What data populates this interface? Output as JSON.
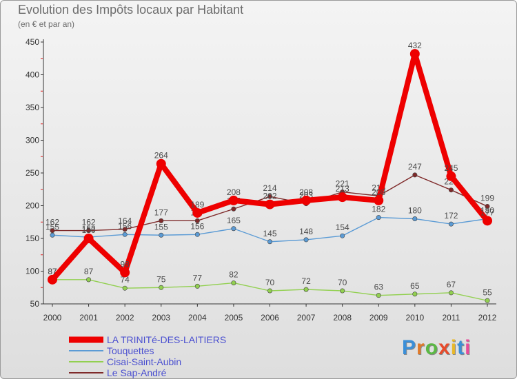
{
  "header": {
    "title": "Evolution des Impôts locaux par Habitant",
    "subtitle": "(en € et par an)"
  },
  "logo": {
    "text": "Proxiti",
    "colors": [
      "#3b8fd8",
      "#e07a2a",
      "#5bb844",
      "#e84a2a",
      "#e8b82a",
      "#3b8fd8",
      "#e84a9a"
    ]
  },
  "chart_data": {
    "type": "line",
    "x": [
      2000,
      2001,
      2002,
      2003,
      2004,
      2005,
      2006,
      2007,
      2008,
      2009,
      2010,
      2011,
      2012
    ],
    "ylim": [
      50,
      450
    ],
    "yticks": [
      50,
      100,
      150,
      200,
      250,
      300,
      350,
      400,
      450
    ],
    "grid": false,
    "legend_position": "bottom-left",
    "series": [
      {
        "name": "LA TRINITé-DES-LAITIERS",
        "color": "#ee0000",
        "values": [
          87,
          150,
          98,
          264,
          189,
          208,
          202,
          208,
          213,
          208,
          432,
          245,
          177
        ],
        "labels": [
          "87",
          "150",
          "98",
          "264",
          "189",
          "208",
          "202",
          "208",
          "213",
          "208",
          "432",
          "245",
          "177"
        ]
      },
      {
        "name": "Touquettes",
        "color": "#5b9bd5",
        "values": [
          155,
          152,
          156,
          155,
          156,
          165,
          145,
          148,
          154,
          182,
          180,
          172,
          180
        ],
        "labels": [
          "155",
          "152",
          "156",
          "155",
          "156",
          "165",
          "145",
          "148",
          "154",
          "182",
          "180",
          "172",
          "180"
        ]
      },
      {
        "name": "Cisai-Saint-Aubin",
        "color": "#92d050",
        "values": [
          87,
          87,
          74,
          75,
          77,
          82,
          70,
          72,
          70,
          63,
          65,
          67,
          55
        ],
        "labels": [
          "87",
          "87",
          "74",
          "75",
          "77",
          "82",
          "70",
          "72",
          "70",
          "63",
          "65",
          "67",
          "55"
        ]
      },
      {
        "name": "Le Sap-André",
        "color": "#7f2a2a",
        "values": [
          162,
          162,
          164,
          177,
          177,
          195,
          214,
          203,
          221,
          215,
          247,
          224,
          199
        ],
        "labels": [
          "162",
          "162",
          "164",
          "177",
          "177",
          "195",
          "214",
          "203",
          "221",
          "215",
          "247",
          "224",
          "199"
        ]
      }
    ]
  }
}
